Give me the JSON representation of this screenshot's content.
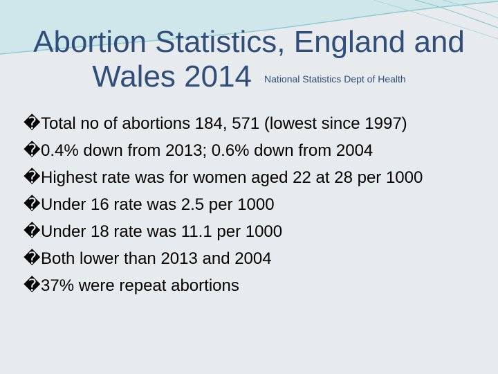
{
  "slide": {
    "title_line1": "Abortion Statistics, England and",
    "title_line2": "Wales 2014",
    "subtitle": "National Statistics Dept of Health",
    "bullet_glyph": "�",
    "bullets": [
      "Total no of abortions 184, 571 (lowest since 1997)",
      "0.4% down from 2013; 0.6% down from 2004",
      "Highest rate was for women aged 22 at 28 per 1000",
      "Under 16 rate was 2.5 per 1000",
      "Under 18 rate was 11.1 per 1000",
      "Both lower than 2013 and 2004",
      "37% were repeat abortions"
    ]
  },
  "theme": {
    "background": "#e8ebed",
    "title_color": "#2f4e7a",
    "decor_color": "#7fc3c9"
  }
}
